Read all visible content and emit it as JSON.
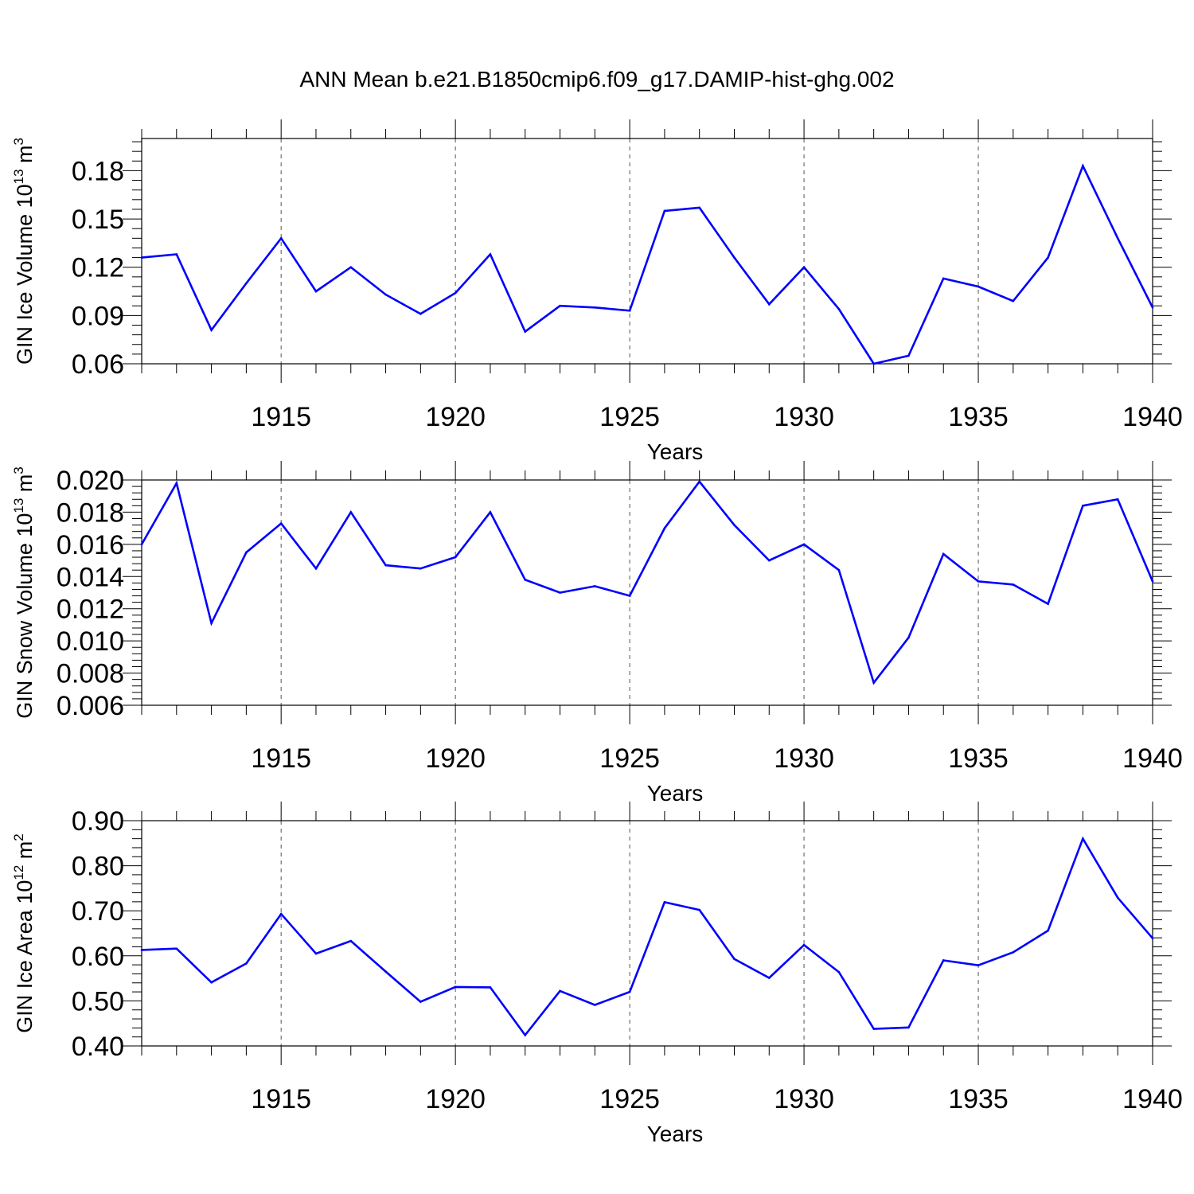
{
  "page_title": "ANN Mean b.e21.B1850cmip6.f09_g17.DAMIP-hist-ghg.002",
  "colors": {
    "line": "#0000ff",
    "axis": "#000000",
    "grid": "#555555"
  },
  "chart_data": [
    {
      "type": "line",
      "title": "ANN Mean b.e21.B1850cmip6.f09_g17.DAMIP-hist-ghg.002",
      "xlabel": "Years",
      "ylabel": "GIN Ice Volume 10",
      "ylabel_exp": "13",
      "ylabel_unit": " m",
      "ylabel_unit_exp": "3",
      "xlim": [
        1911,
        1940
      ],
      "ylim": [
        0.06,
        0.2
      ],
      "xticks": [
        1915,
        1920,
        1925,
        1930,
        1935,
        1940
      ],
      "yticks": [
        0.06,
        0.09,
        0.12,
        0.15,
        0.18
      ],
      "ytick_labels": [
        "0.06",
        "0.09",
        "0.12",
        "0.15",
        "0.18"
      ],
      "grid": "vertical dashed at x ticks",
      "series": [
        {
          "name": "GIN Ice Volume",
          "x": [
            1911,
            1912,
            1913,
            1914,
            1915,
            1916,
            1917,
            1918,
            1919,
            1920,
            1921,
            1922,
            1923,
            1924,
            1925,
            1926,
            1927,
            1928,
            1929,
            1930,
            1931,
            1932,
            1933,
            1934,
            1935,
            1936,
            1937,
            1938,
            1939,
            1940
          ],
          "values": [
            0.126,
            0.128,
            0.081,
            0.11,
            0.138,
            0.105,
            0.12,
            0.103,
            0.091,
            0.104,
            0.128,
            0.08,
            0.096,
            0.095,
            0.093,
            0.155,
            0.157,
            0.126,
            0.097,
            0.12,
            0.094,
            0.06,
            0.065,
            0.113,
            0.108,
            0.099,
            0.126,
            0.183,
            0.138,
            0.095
          ]
        }
      ]
    },
    {
      "type": "line",
      "xlabel": "Years",
      "ylabel": "GIN Snow Volume 10",
      "ylabel_exp": "13",
      "ylabel_unit": " m",
      "ylabel_unit_exp": "3",
      "xlim": [
        1911,
        1940
      ],
      "ylim": [
        0.006,
        0.02
      ],
      "xticks": [
        1915,
        1920,
        1925,
        1930,
        1935,
        1940
      ],
      "yticks": [
        0.006,
        0.008,
        0.01,
        0.012,
        0.014,
        0.016,
        0.018,
        0.02
      ],
      "ytick_labels": [
        "0.006",
        "0.008",
        "0.010",
        "0.012",
        "0.014",
        "0.016",
        "0.018",
        "0.020"
      ],
      "grid": "vertical dashed at x ticks",
      "series": [
        {
          "name": "GIN Snow Volume",
          "x": [
            1911,
            1912,
            1913,
            1914,
            1915,
            1916,
            1917,
            1918,
            1919,
            1920,
            1921,
            1922,
            1923,
            1924,
            1925,
            1926,
            1927,
            1928,
            1929,
            1930,
            1931,
            1932,
            1933,
            1934,
            1935,
            1936,
            1937,
            1938,
            1939,
            1940
          ],
          "values": [
            0.016,
            0.0198,
            0.0111,
            0.0155,
            0.0173,
            0.0145,
            0.018,
            0.0147,
            0.0145,
            0.0152,
            0.018,
            0.0138,
            0.013,
            0.0134,
            0.0128,
            0.017,
            0.0199,
            0.0172,
            0.015,
            0.016,
            0.0144,
            0.0074,
            0.0102,
            0.0154,
            0.0137,
            0.0135,
            0.0123,
            0.0184,
            0.0188,
            0.0137
          ]
        }
      ]
    },
    {
      "type": "line",
      "xlabel": "Years",
      "ylabel": "GIN Ice Area 10",
      "ylabel_exp": "12",
      "ylabel_unit": " m",
      "ylabel_unit_exp": "2",
      "xlim": [
        1911,
        1940
      ],
      "ylim": [
        0.4,
        0.9
      ],
      "xticks": [
        1915,
        1920,
        1925,
        1930,
        1935,
        1940
      ],
      "yticks": [
        0.4,
        0.5,
        0.6,
        0.7,
        0.8,
        0.9
      ],
      "ytick_labels": [
        "0.40",
        "0.50",
        "0.60",
        "0.70",
        "0.80",
        "0.90"
      ],
      "grid": "vertical dashed at x ticks",
      "series": [
        {
          "name": "GIN Ice Area",
          "x": [
            1911,
            1912,
            1913,
            1914,
            1915,
            1916,
            1917,
            1918,
            1919,
            1920,
            1921,
            1922,
            1923,
            1924,
            1925,
            1926,
            1927,
            1928,
            1929,
            1930,
            1931,
            1932,
            1933,
            1934,
            1935,
            1936,
            1937,
            1938,
            1939,
            1940
          ],
          "values": [
            0.613,
            0.616,
            0.541,
            0.583,
            0.693,
            0.605,
            0.633,
            0.565,
            0.498,
            0.531,
            0.53,
            0.424,
            0.522,
            0.491,
            0.52,
            0.719,
            0.702,
            0.593,
            0.551,
            0.624,
            0.564,
            0.438,
            0.441,
            0.59,
            0.579,
            0.608,
            0.656,
            0.86,
            0.729,
            0.639
          ]
        }
      ]
    }
  ]
}
